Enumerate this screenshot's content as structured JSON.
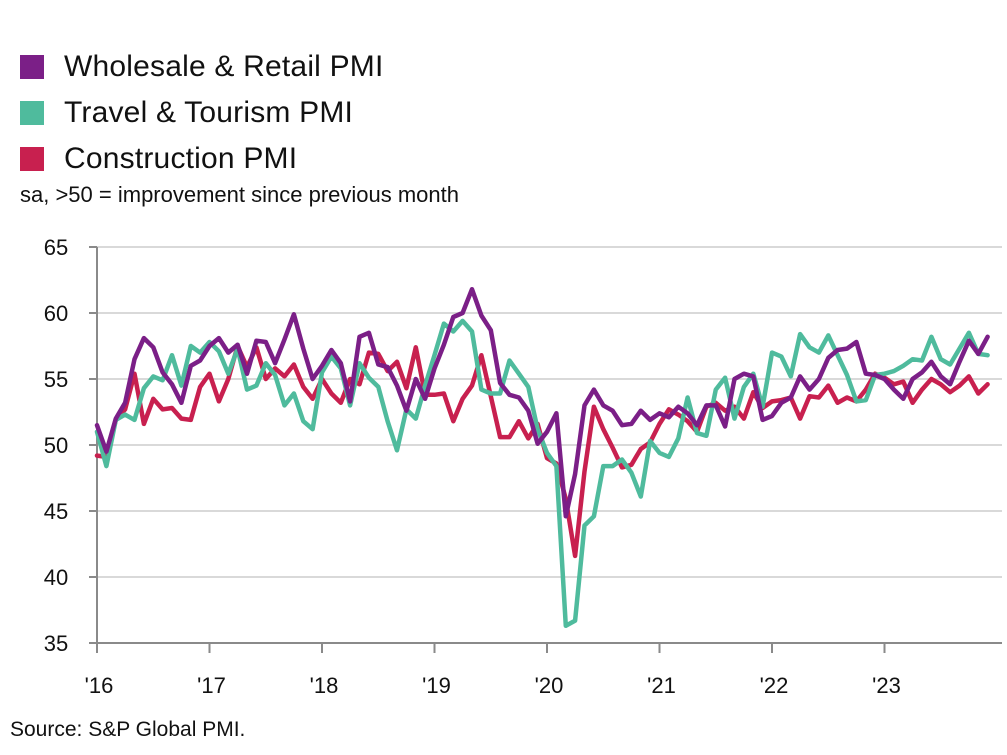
{
  "chart_data": {
    "type": "line",
    "title": "",
    "subtitle": "sa, >50 = improvement since previous month",
    "source": "Source: S&P Global PMI.",
    "xlabel": "",
    "ylabel": "",
    "ylim": [
      35,
      65
    ],
    "yticks": [
      65,
      60,
      55,
      50,
      45,
      40,
      35
    ],
    "ytick_labels": [
      "65",
      "60",
      "55",
      "50",
      "45",
      "40",
      "35"
    ],
    "xticks_years": [
      2016,
      2017,
      2018,
      2019,
      2020,
      2021,
      2022,
      2023
    ],
    "xtick_labels": [
      "'16",
      "'17",
      "'18",
      "'19",
      "'20",
      "'21",
      "'22",
      "'23"
    ],
    "x_start": "2016-01",
    "x_end": "2023-11",
    "frequency": "monthly",
    "grid": "horizontal",
    "legend_placement": "top-left",
    "series": [
      {
        "name": "Wholesale & Retail PMI",
        "color": "#7b1f87",
        "values": [
          51.5,
          49.5,
          52.0,
          53.2,
          56.5,
          58.1,
          57.4,
          55.5,
          54.6,
          53.2,
          56.0,
          56.4,
          57.5,
          58.1,
          57.0,
          57.6,
          55.4,
          57.9,
          57.8,
          56.2,
          58.0,
          59.9,
          57.3,
          55.0,
          56.0,
          57.2,
          56.2,
          53.3,
          58.2,
          58.5,
          56.1,
          55.9,
          54.5,
          52.6,
          55.0,
          53.5,
          55.8,
          57.6,
          59.7,
          60.0,
          61.8,
          59.8,
          58.7,
          54.7,
          53.8,
          53.6,
          52.6,
          50.1,
          51.0,
          52.4,
          44.6,
          47.8,
          53.0,
          54.2,
          53.0,
          52.6,
          51.5,
          51.6,
          52.6,
          51.9,
          52.4,
          52.1,
          52.9,
          52.4,
          51.5,
          53.0,
          53.0,
          51.4,
          55.0,
          55.4,
          55.2,
          51.9,
          52.2,
          53.2,
          53.6,
          55.2,
          54.2,
          55.0,
          56.6,
          57.2,
          57.3,
          57.8,
          55.4,
          55.3,
          55.0,
          54.2,
          53.5,
          55.0,
          55.5,
          56.3,
          55.2,
          54.6,
          56.3,
          57.9,
          56.9,
          58.2
        ]
      },
      {
        "name": "Travel & Tourism PMI",
        "color": "#4fbb9d",
        "values": [
          51.0,
          48.4,
          51.9,
          52.3,
          51.9,
          54.3,
          55.2,
          54.9,
          56.8,
          54.5,
          57.5,
          57.0,
          57.8,
          57.1,
          55.4,
          57.3,
          54.2,
          54.5,
          56.2,
          55.3,
          53.0,
          53.9,
          51.8,
          51.2,
          55.5,
          56.7,
          55.8,
          53.0,
          56.2,
          55.1,
          54.4,
          51.8,
          49.6,
          52.7,
          52.0,
          54.5,
          56.8,
          59.2,
          58.6,
          59.4,
          58.6,
          54.2,
          53.9,
          53.9,
          56.4,
          55.4,
          54.4,
          51.2,
          49.4,
          48.4,
          36.3,
          36.7,
          43.9,
          44.6,
          48.4,
          48.4,
          48.9,
          47.9,
          46.1,
          50.3,
          49.4,
          49.1,
          50.5,
          53.6,
          50.9,
          50.7,
          54.2,
          55.1,
          52.0,
          54.4,
          55.4,
          52.9,
          57.0,
          56.7,
          55.2,
          58.4,
          57.4,
          57.0,
          58.3,
          56.8,
          55.3,
          53.3,
          53.4,
          55.3,
          55.4,
          55.6,
          56.0,
          56.5,
          56.4,
          58.2,
          56.5,
          56.1,
          57.3,
          58.5,
          56.9,
          56.8
        ]
      },
      {
        "name": "Construction PMI",
        "color": "#c8204f",
        "values": [
          49.2,
          49.1,
          51.9,
          52.7,
          55.4,
          51.6,
          53.5,
          52.7,
          52.8,
          52.0,
          51.9,
          54.4,
          55.4,
          53.3,
          55.0,
          57.5,
          55.9,
          57.4,
          55.0,
          55.8,
          55.2,
          56.1,
          54.4,
          53.5,
          55.0,
          53.9,
          53.2,
          55.0,
          54.6,
          57.0,
          56.9,
          55.6,
          56.3,
          54.3,
          57.4,
          53.8,
          53.8,
          53.9,
          51.8,
          53.5,
          54.5,
          56.8,
          53.7,
          50.6,
          50.6,
          51.8,
          50.5,
          51.6,
          49.0,
          48.6,
          45.9,
          41.6,
          48.0,
          52.9,
          51.2,
          49.8,
          48.3,
          48.5,
          49.7,
          50.2,
          51.6,
          52.7,
          52.3,
          51.8,
          51.0,
          52.9,
          53.2,
          52.6,
          52.9,
          52.0,
          54.0,
          52.8,
          53.3,
          53.4,
          53.6,
          52.0,
          53.7,
          53.6,
          54.5,
          53.2,
          53.6,
          53.3,
          54.2,
          55.4,
          55.1,
          54.6,
          54.8,
          53.2,
          54.2,
          55.0,
          54.6,
          54.0,
          54.5,
          55.2,
          53.9,
          54.6
        ]
      }
    ]
  }
}
